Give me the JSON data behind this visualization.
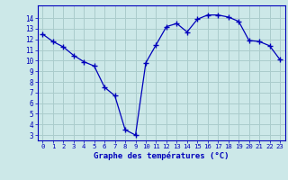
{
  "x": [
    0,
    1,
    2,
    3,
    4,
    5,
    6,
    7,
    8,
    9,
    10,
    11,
    12,
    13,
    14,
    15,
    16,
    17,
    18,
    19,
    20,
    21,
    22,
    23
  ],
  "y": [
    12.5,
    11.8,
    11.3,
    10.5,
    9.9,
    9.5,
    7.5,
    6.7,
    3.5,
    3.0,
    9.8,
    11.5,
    13.2,
    13.5,
    12.7,
    13.9,
    14.3,
    14.3,
    14.1,
    13.7,
    11.9,
    11.8,
    11.4,
    10.1
  ],
  "line_color": "#0000bb",
  "marker": "P",
  "marker_size": 2.5,
  "bg_color": "#cce8e8",
  "grid_color": "#aacccc",
  "axis_label_color": "#0000bb",
  "xlabel": "Graphe des températures (°C)",
  "ylabel_ticks": [
    3,
    4,
    5,
    6,
    7,
    8,
    9,
    10,
    11,
    12,
    13,
    14
  ],
  "xlabel_ticks": [
    0,
    1,
    2,
    3,
    4,
    5,
    6,
    7,
    8,
    9,
    10,
    11,
    12,
    13,
    14,
    15,
    16,
    17,
    18,
    19,
    20,
    21,
    22,
    23
  ],
  "ylim": [
    2.5,
    15.2
  ],
  "xlim": [
    -0.5,
    23.5
  ]
}
